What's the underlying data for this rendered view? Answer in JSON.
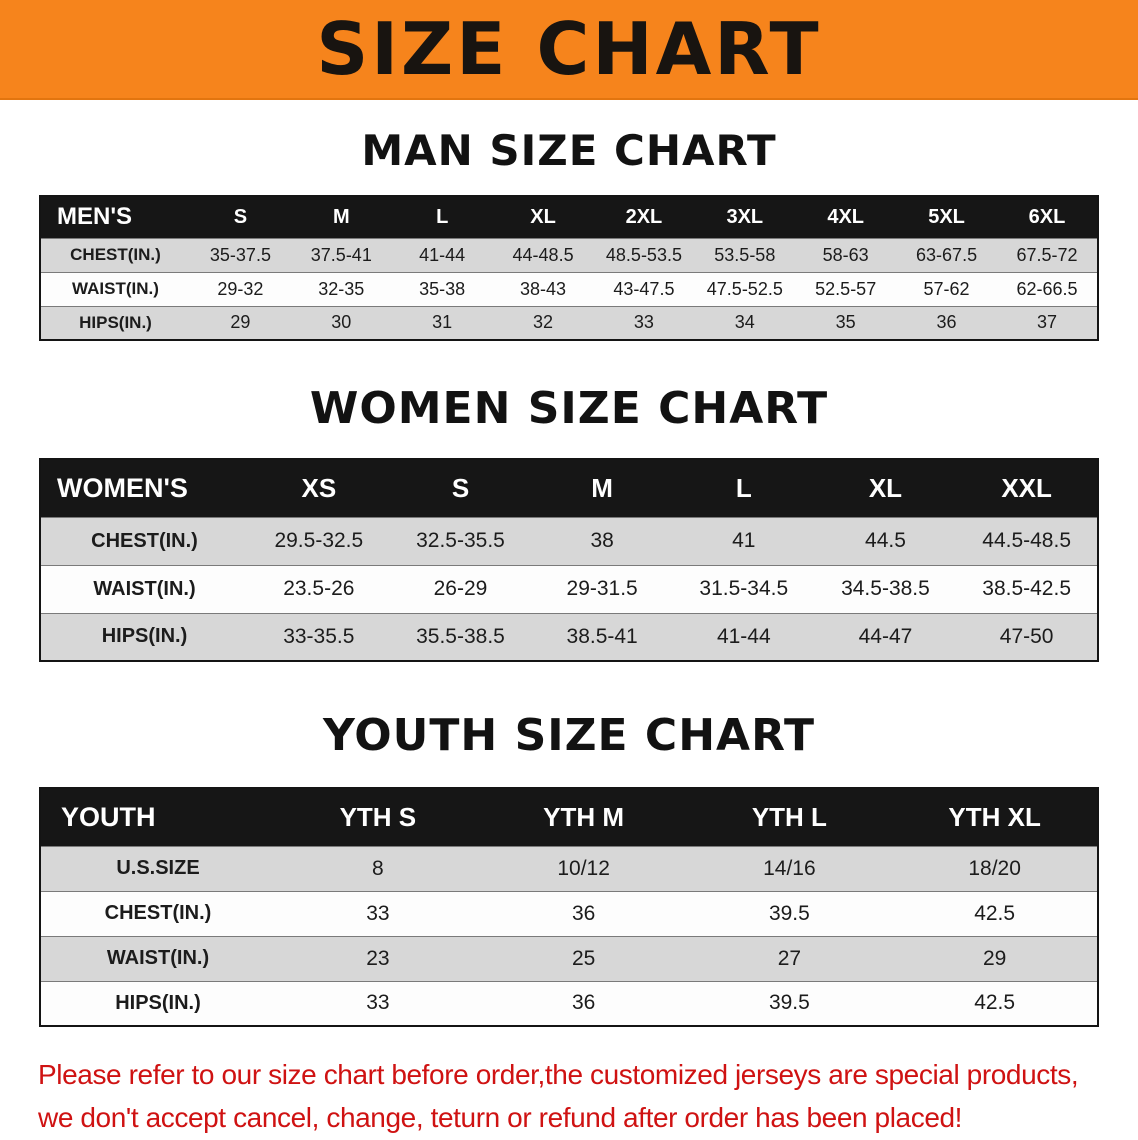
{
  "banner": {
    "title": "SIZE CHART"
  },
  "men": {
    "heading": "MAN SIZE CHART",
    "header": [
      "MEN'S",
      "S",
      "M",
      "L",
      "XL",
      "2XL",
      "3XL",
      "4XL",
      "5XL",
      "6XL"
    ],
    "rows": [
      {
        "label": "CHEST(IN.)",
        "values": [
          "35-37.5",
          "37.5-41",
          "41-44",
          "44-48.5",
          "48.5-53.5",
          "53.5-58",
          "58-63",
          "63-67.5",
          "67.5-72"
        ]
      },
      {
        "label": "WAIST(IN.)",
        "values": [
          "29-32",
          "32-35",
          "35-38",
          "38-43",
          "43-47.5",
          "47.5-52.5",
          "52.5-57",
          "57-62",
          "62-66.5"
        ]
      },
      {
        "label": "HIPS(IN.)",
        "values": [
          "29",
          "30",
          "31",
          "32",
          "33",
          "34",
          "35",
          "36",
          "37"
        ]
      }
    ]
  },
  "women": {
    "heading": "WOMEN SIZE CHART",
    "header": [
      "WOMEN'S",
      "XS",
      "S",
      "M",
      "L",
      "XL",
      "XXL"
    ],
    "rows": [
      {
        "label": "CHEST(IN.)",
        "values": [
          "29.5-32.5",
          "32.5-35.5",
          "38",
          "41",
          "44.5",
          "44.5-48.5"
        ]
      },
      {
        "label": "WAIST(IN.)",
        "values": [
          "23.5-26",
          "26-29",
          "29-31.5",
          "31.5-34.5",
          "34.5-38.5",
          "38.5-42.5"
        ]
      },
      {
        "label": "HIPS(IN.)",
        "values": [
          "33-35.5",
          "35.5-38.5",
          "38.5-41",
          "41-44",
          "44-47",
          "47-50"
        ]
      }
    ]
  },
  "youth": {
    "heading": "YOUTH SIZE CHART",
    "header": [
      "YOUTH",
      "YTH S",
      "YTH M",
      "YTH L",
      "YTH XL"
    ],
    "rows": [
      {
        "label": "U.S.SIZE",
        "values": [
          "8",
          "10/12",
          "14/16",
          "18/20"
        ]
      },
      {
        "label": "CHEST(IN.)",
        "values": [
          "33",
          "36",
          "39.5",
          "42.5"
        ]
      },
      {
        "label": "WAIST(IN.)",
        "values": [
          "23",
          "25",
          "27",
          "29"
        ]
      },
      {
        "label": "HIPS(IN.)",
        "values": [
          "33",
          "36",
          "39.5",
          "42.5"
        ]
      }
    ]
  },
  "footer": {
    "line1": "Please refer to our size chart before order,the customized jerseys are special products,",
    "line2": "we don't accept cancel, change, teturn or refund after order has been placed!"
  },
  "colors": {
    "banner_bg": "#f6841c",
    "header_bg": "#161616",
    "row_alt": "#d7d7d7",
    "footer_text": "#cf1212"
  }
}
